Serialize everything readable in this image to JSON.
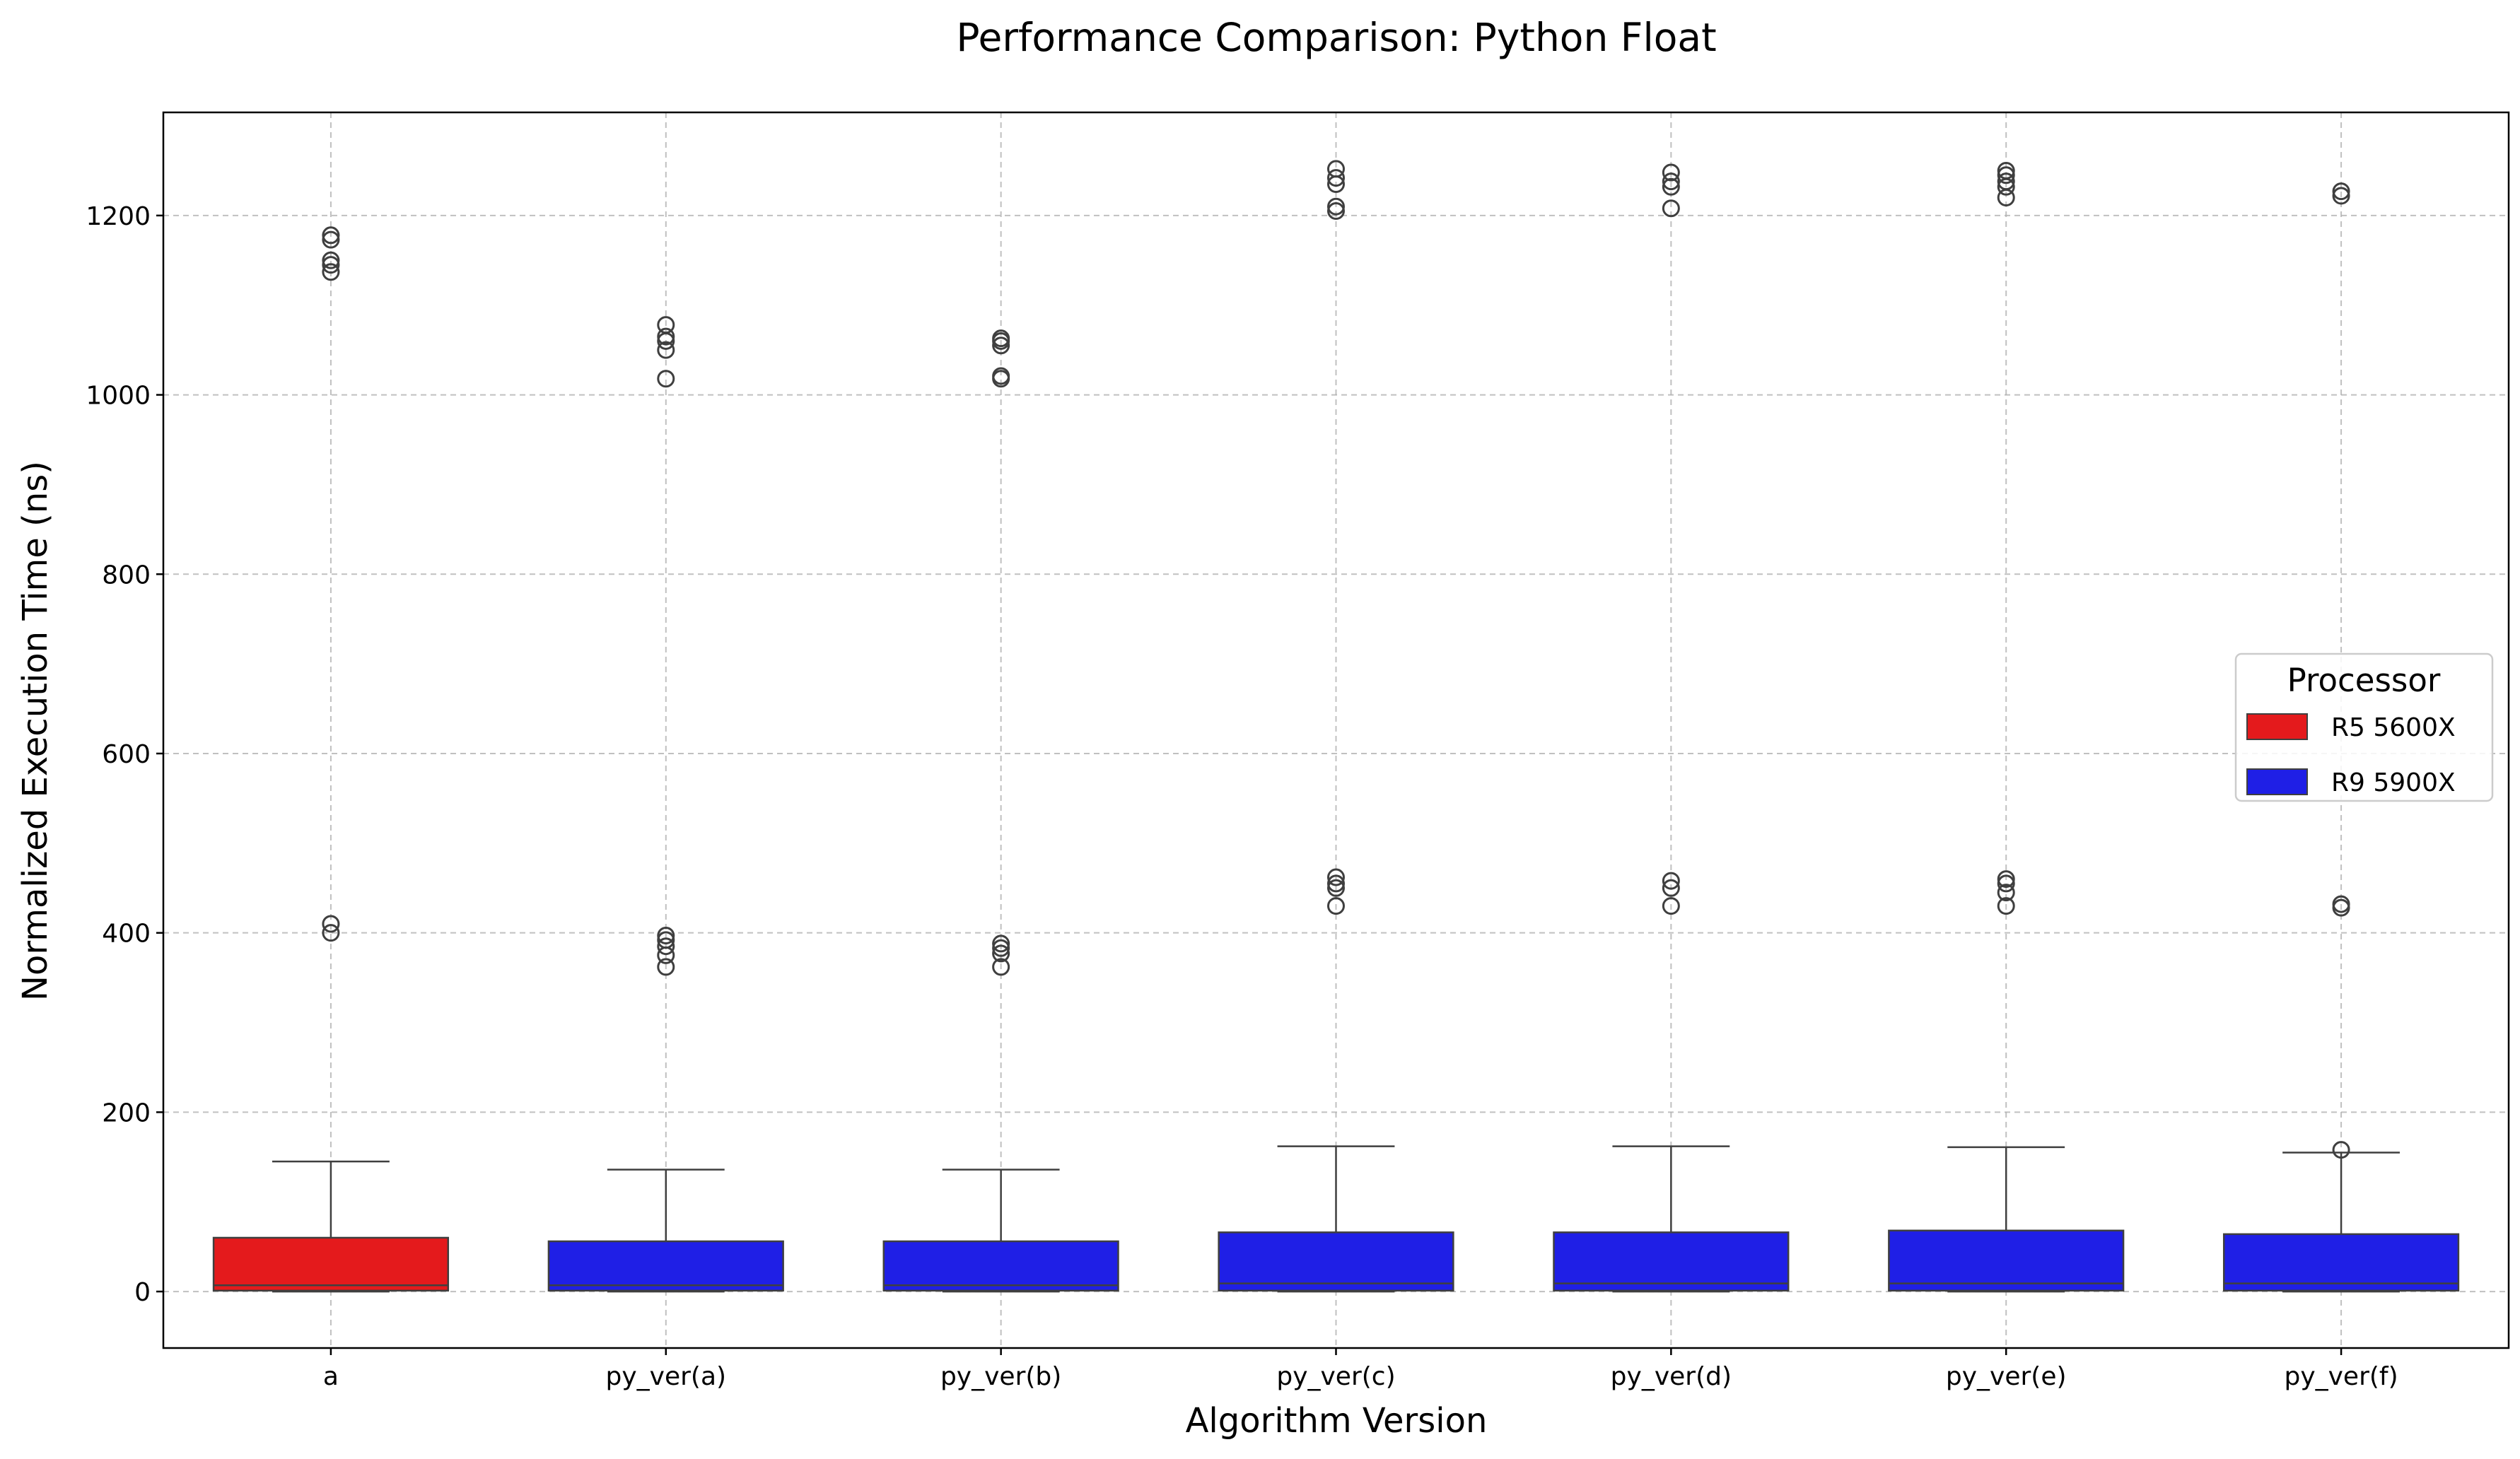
{
  "chart_data": {
    "type": "box",
    "title": "Performance Comparison: Python Float",
    "xlabel": "Algorithm Version",
    "ylabel": "Normalized Execution Time (ns)",
    "ylim": [
      -63,
      1315
    ],
    "yticks": [
      0,
      200,
      400,
      600,
      800,
      1000,
      1200
    ],
    "grid": true,
    "legend": {
      "title": "Processor",
      "placement": "center-right",
      "entries": [
        {
          "label": "R5 5600X",
          "color": "#e41a1c"
        },
        {
          "label": "R9 5900X",
          "color": "#1f1fe6"
        }
      ]
    },
    "categories": [
      "a",
      "py_ver(a)",
      "py_ver(b)",
      "py_ver(c)",
      "py_ver(d)",
      "py_ver(e)",
      "py_ver(f)"
    ],
    "boxes": [
      {
        "category": "a",
        "processor": "R5 5600X",
        "min": 0,
        "q1": 1,
        "median": 7,
        "q3": 60,
        "max": 145,
        "outliers": [
          400,
          410,
          1137,
          1145,
          1150,
          1173,
          1178
        ]
      },
      {
        "category": "py_ver(a)",
        "processor": "R9 5900X",
        "min": 0,
        "q1": 1,
        "median": 7,
        "q3": 56,
        "max": 136,
        "outliers": [
          362,
          375,
          385,
          392,
          397,
          1018,
          1050,
          1060,
          1065,
          1078
        ]
      },
      {
        "category": "py_ver(b)",
        "processor": "R9 5900X",
        "min": 0,
        "q1": 1,
        "median": 7,
        "q3": 56,
        "max": 136,
        "outliers": [
          362,
          377,
          383,
          388,
          1018,
          1021,
          1055,
          1060,
          1063
        ]
      },
      {
        "category": "py_ver(c)",
        "processor": "R9 5900X",
        "min": 0,
        "q1": 1,
        "median": 9,
        "q3": 66,
        "max": 162,
        "outliers": [
          430,
          450,
          455,
          462,
          1205,
          1210,
          1235,
          1242,
          1252
        ]
      },
      {
        "category": "py_ver(d)",
        "processor": "R9 5900X",
        "min": 0,
        "q1": 1,
        "median": 9,
        "q3": 66,
        "max": 162,
        "outliers": [
          430,
          450,
          458,
          1208,
          1232,
          1238,
          1248
        ]
      },
      {
        "category": "py_ver(e)",
        "processor": "R9 5900X",
        "min": 0,
        "q1": 1,
        "median": 9,
        "q3": 68,
        "max": 161,
        "outliers": [
          430,
          445,
          455,
          460,
          1220,
          1232,
          1238,
          1245,
          1250
        ]
      },
      {
        "category": "py_ver(f)",
        "processor": "R9 5900X",
        "min": 0,
        "q1": 1,
        "median": 9,
        "q3": 64,
        "max": 155,
        "outliers": [
          158,
          428,
          432,
          1222,
          1227
        ]
      }
    ],
    "colors": {
      "box_edge": "#3f3f3f",
      "grid": "#b0b0b0",
      "axes": "#000000"
    }
  }
}
